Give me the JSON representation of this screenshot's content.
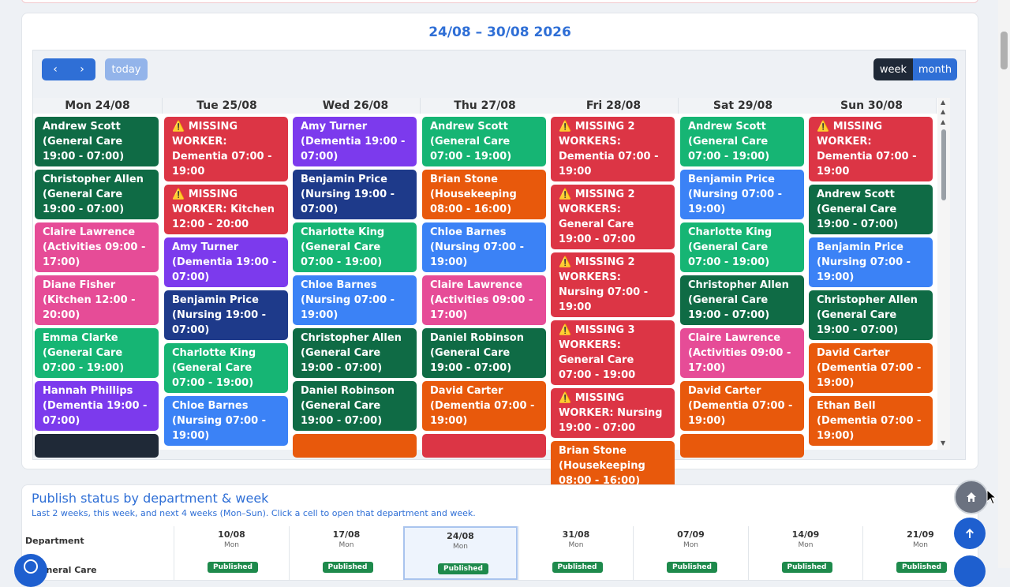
{
  "calendar": {
    "title": "24/08 – 30/08 2026",
    "today_label": "today",
    "prev_glyph": "‹",
    "next_glyph": "›",
    "views": {
      "week": "week",
      "month": "month"
    },
    "days": [
      {
        "label": "Mon 24/08",
        "events": [
          {
            "text": "Andrew Scott (General Care 19:00 - 07:00)",
            "color": "#0f6b45"
          },
          {
            "text": "Christopher Allen (General Care 19:00 - 07:00)",
            "color": "#0f6b45"
          },
          {
            "text": "Claire Lawrence (Activities 09:00 - 17:00)",
            "color": "#e64c97"
          },
          {
            "text": "Diane Fisher (Kitchen 12:00 - 20:00)",
            "color": "#e64c97"
          },
          {
            "text": "Emma Clarke (General Care 07:00 - 19:00)",
            "color": "#16b574"
          },
          {
            "text": "Hannah Phillips (Dementia 19:00 - 07:00)",
            "color": "#7c3aed"
          },
          {
            "text": "",
            "color": "#1f2937"
          }
        ]
      },
      {
        "label": "Tue 25/08",
        "events": [
          {
            "text": "⚠️ MISSING WORKER: Dementia 07:00 - 19:00",
            "color": "#dc3545"
          },
          {
            "text": "⚠️ MISSING WORKER: Kitchen 12:00 - 20:00",
            "color": "#dc3545"
          },
          {
            "text": "Amy Turner (Dementia 19:00 - 07:00)",
            "color": "#7c3aed"
          },
          {
            "text": "Benjamin Price (Nursing 19:00 - 07:00)",
            "color": "#1e3a8a"
          },
          {
            "text": "Charlotte King (General Care 07:00 - 19:00)",
            "color": "#16b574"
          },
          {
            "text": "Chloe Barnes (Nursing 07:00 - 19:00)",
            "color": "#3b82f6"
          }
        ]
      },
      {
        "label": "Wed 26/08",
        "events": [
          {
            "text": "Amy Turner (Dementia 19:00 - 07:00)",
            "color": "#7c3aed"
          },
          {
            "text": "Benjamin Price (Nursing 19:00 - 07:00)",
            "color": "#1e3a8a"
          },
          {
            "text": "Charlotte King (General Care 07:00 - 19:00)",
            "color": "#16b574"
          },
          {
            "text": "Chloe Barnes (Nursing 07:00 - 19:00)",
            "color": "#3b82f6"
          },
          {
            "text": "Christopher Allen (General Care 19:00 - 07:00)",
            "color": "#0f6b45"
          },
          {
            "text": "Daniel Robinson (General Care 19:00 - 07:00)",
            "color": "#0f6b45"
          },
          {
            "text": "",
            "color": "#e8590c"
          }
        ]
      },
      {
        "label": "Thu 27/08",
        "events": [
          {
            "text": "Andrew Scott (General Care 07:00 - 19:00)",
            "color": "#16b574"
          },
          {
            "text": "Brian Stone (Housekeeping 08:00 - 16:00)",
            "color": "#e8590c"
          },
          {
            "text": "Chloe Barnes (Nursing 07:00 - 19:00)",
            "color": "#3b82f6"
          },
          {
            "text": "Claire Lawrence (Activities 09:00 - 17:00)",
            "color": "#e64c97"
          },
          {
            "text": "Daniel Robinson (General Care 19:00 - 07:00)",
            "color": "#0f6b45"
          },
          {
            "text": "David Carter (Dementia 07:00 - 19:00)",
            "color": "#e8590c"
          },
          {
            "text": "",
            "color": "#dc3545"
          }
        ]
      },
      {
        "label": "Fri 28/08",
        "events": [
          {
            "text": "⚠️ MISSING 2 WORKERS: Dementia 07:00 - 19:00",
            "color": "#dc3545"
          },
          {
            "text": "⚠️ MISSING 2 WORKERS: General Care 19:00 - 07:00",
            "color": "#dc3545"
          },
          {
            "text": "⚠️ MISSING 2 WORKERS: Nursing 07:00 - 19:00",
            "color": "#dc3545"
          },
          {
            "text": "⚠️ MISSING 3 WORKERS: General Care 07:00 - 19:00",
            "color": "#dc3545"
          },
          {
            "text": "⚠️ MISSING WORKER: Nursing 19:00 - 07:00",
            "color": "#dc3545"
          },
          {
            "text": "Brian Stone (Housekeeping 08:00 - 16:00)",
            "color": "#e8590c"
          }
        ]
      },
      {
        "label": "Sat 29/08",
        "events": [
          {
            "text": "Andrew Scott (General Care 07:00 - 19:00)",
            "color": "#16b574"
          },
          {
            "text": "Benjamin Price (Nursing 07:00 - 19:00)",
            "color": "#3b82f6"
          },
          {
            "text": "Charlotte King (General Care 07:00 - 19:00)",
            "color": "#16b574"
          },
          {
            "text": "Christopher Allen (General Care 19:00 - 07:00)",
            "color": "#0f6b45"
          },
          {
            "text": "Claire Lawrence (Activities 09:00 - 17:00)",
            "color": "#e64c97"
          },
          {
            "text": "David Carter (Dementia 07:00 - 19:00)",
            "color": "#e8590c"
          },
          {
            "text": "",
            "color": "#e8590c"
          }
        ]
      },
      {
        "label": "Sun 30/08",
        "events": [
          {
            "text": "⚠️ MISSING WORKER: Dementia 07:00 - 19:00",
            "color": "#dc3545"
          },
          {
            "text": "Andrew Scott (General Care 19:00 - 07:00)",
            "color": "#0f6b45"
          },
          {
            "text": "Benjamin Price (Nursing 07:00 - 19:00)",
            "color": "#3b82f6"
          },
          {
            "text": "Christopher Allen (General Care 19:00 - 07:00)",
            "color": "#0f6b45"
          },
          {
            "text": "David Carter (Dementia 07:00 - 19:00)",
            "color": "#e8590c"
          },
          {
            "text": "Ethan Bell (Dementia 07:00 - 19:00)",
            "color": "#e8590c"
          }
        ]
      }
    ]
  },
  "publish": {
    "title": "Publish status by department & week",
    "subtitle": "Last 2 weeks, this week, and next 4 weeks (Mon–Sun). Click a cell to open that department and week.",
    "dept_header": "Department",
    "first_dept": "General Care",
    "weeks": [
      {
        "date": "10/08",
        "day": "Mon",
        "status": "Published"
      },
      {
        "date": "17/08",
        "day": "Mon",
        "status": "Published"
      },
      {
        "date": "24/08",
        "day": "Mon",
        "status": "Published"
      },
      {
        "date": "31/08",
        "day": "Mon",
        "status": "Published"
      },
      {
        "date": "07/09",
        "day": "Mon",
        "status": "Published"
      },
      {
        "date": "14/09",
        "day": "Mon",
        "status": "Published"
      },
      {
        "date": "21/09",
        "day": "Mon",
        "status": "Published"
      }
    ]
  },
  "icons": {
    "home": "home-icon",
    "up": "arrow-up-icon"
  }
}
